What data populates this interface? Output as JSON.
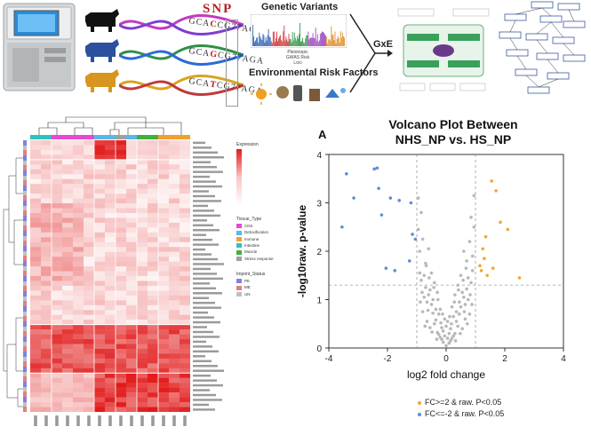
{
  "top": {
    "snp_label": "SNP",
    "sequences": [
      {
        "before": "GCA",
        "mut": "C",
        "after": "CG77AGA"
      },
      {
        "before": "GCA",
        "mut": "G",
        "after": "CG77AGA"
      },
      {
        "before": "GCA",
        "mut": "T",
        "after": "CG77AGA"
      }
    ],
    "gwas_title": "Genetic Variants",
    "gwas_sub": "Pleiotropic\nGWAS Risk\nLoci",
    "env_title": "Environmental Risk Factors",
    "gxe_label": "GxE"
  },
  "heatmap": {
    "legend_expression_title": "Expression",
    "legend_tissue_title": "Tissue_Type",
    "tissue_types": [
      {
        "label": "CNS",
        "color": "#e64ad3"
      },
      {
        "label": "Detoxification",
        "color": "#58b8e8"
      },
      {
        "label": "Immune",
        "color": "#f0a030"
      },
      {
        "label": "Intestine",
        "color": "#30c0c0"
      },
      {
        "label": "Muscle",
        "color": "#40b040"
      },
      {
        "label": "Stress response",
        "color": "#a0a0a0"
      }
    ],
    "legend_imprint_title": "Imprint_Status",
    "imprint_status": [
      {
        "label": "PE",
        "color": "#8080e0"
      },
      {
        "label": "ME",
        "color": "#e08080"
      },
      {
        "label": "UN",
        "color": "#c0c0c0"
      }
    ]
  },
  "volcano": {
    "panel_letter": "A",
    "title_line1": "Volcano Plot Between",
    "title_line2": "NHS_NP vs. HS_NP",
    "legend": [
      {
        "label": "FC>=2 & raw. P<0.05",
        "color": "#f0a830"
      },
      {
        "label": "FC<=-2 & raw. P<0.05",
        "color": "#5b8fd6"
      }
    ]
  },
  "chart_data": {
    "type": "scatter",
    "title": "Volcano Plot Between NHS_NP vs. HS_NP",
    "xlabel": "log2 fold change",
    "ylabel": "-log10raw. p-value",
    "xlim": [
      -4,
      4
    ],
    "ylim": [
      0,
      4
    ],
    "xticks": [
      -4,
      -2,
      0,
      2,
      4
    ],
    "yticks": [
      0,
      1,
      2,
      3,
      4
    ],
    "threshold_lines": {
      "x": [
        -1,
        1
      ],
      "y": 1.3
    },
    "series": [
      {
        "name": "FC>=2 & raw. P<0.05",
        "color": "#f0a830",
        "points": [
          [
            1.55,
            3.45
          ],
          [
            1.7,
            3.25
          ],
          [
            1.85,
            2.6
          ],
          [
            2.1,
            2.45
          ],
          [
            1.35,
            2.3
          ],
          [
            1.25,
            2.05
          ],
          [
            1.3,
            1.85
          ],
          [
            1.2,
            1.6
          ],
          [
            1.4,
            1.5
          ],
          [
            2.5,
            1.45
          ],
          [
            1.15,
            1.7
          ],
          [
            1.6,
            1.65
          ]
        ]
      },
      {
        "name": "FC<=-2 & raw. P<0.05",
        "color": "#5b8fd6",
        "points": [
          [
            -3.4,
            3.6
          ],
          [
            -2.45,
            3.7
          ],
          [
            -2.35,
            3.72
          ],
          [
            -3.55,
            2.5
          ],
          [
            -2.3,
            3.3
          ],
          [
            -1.9,
            3.1
          ],
          [
            -1.6,
            3.05
          ],
          [
            -1.2,
            3.0
          ],
          [
            -2.2,
            2.75
          ],
          [
            -3.15,
            3.1
          ],
          [
            -1.15,
            2.35
          ],
          [
            -1.05,
            2.25
          ],
          [
            -1.25,
            1.8
          ],
          [
            -1.75,
            1.6
          ],
          [
            -2.05,
            1.65
          ]
        ]
      },
      {
        "name": "not significant",
        "color": "#b8b8b8",
        "points": [
          [
            0.0,
            0.05
          ],
          [
            0.1,
            0.1
          ],
          [
            -0.1,
            0.12
          ],
          [
            0.2,
            0.2
          ],
          [
            -0.2,
            0.22
          ],
          [
            0.3,
            0.3
          ],
          [
            -0.3,
            0.32
          ],
          [
            0.15,
            0.4
          ],
          [
            -0.15,
            0.42
          ],
          [
            0.4,
            0.45
          ],
          [
            -0.4,
            0.5
          ],
          [
            0.05,
            0.55
          ],
          [
            -0.05,
            0.6
          ],
          [
            0.25,
            0.65
          ],
          [
            -0.25,
            0.7
          ],
          [
            0.35,
            0.75
          ],
          [
            -0.35,
            0.8
          ],
          [
            0.5,
            0.85
          ],
          [
            -0.5,
            0.9
          ],
          [
            0.45,
            0.95
          ],
          [
            -0.45,
            1.0
          ],
          [
            0.6,
            1.05
          ],
          [
            -0.6,
            1.1
          ],
          [
            0.55,
            1.15
          ],
          [
            -0.55,
            1.2
          ],
          [
            0.7,
            1.22
          ],
          [
            -0.7,
            1.25
          ],
          [
            0.65,
            0.6
          ],
          [
            -0.65,
            0.55
          ],
          [
            0.8,
            0.7
          ],
          [
            -0.8,
            0.75
          ],
          [
            0.75,
            1.0
          ],
          [
            -0.75,
            1.05
          ],
          [
            0.85,
            1.35
          ],
          [
            -0.85,
            1.4
          ],
          [
            0.9,
            1.6
          ],
          [
            -0.9,
            1.55
          ],
          [
            0.7,
            1.8
          ],
          [
            -0.7,
            1.75
          ],
          [
            0.6,
            2.0
          ],
          [
            -0.6,
            2.05
          ],
          [
            0.8,
            2.2
          ],
          [
            -0.8,
            2.25
          ],
          [
            0.5,
            1.5
          ],
          [
            -0.5,
            1.55
          ],
          [
            0.95,
            2.5
          ],
          [
            -0.95,
            2.45
          ],
          [
            0.85,
            2.7
          ],
          [
            -0.85,
            2.8
          ],
          [
            0.4,
            1.3
          ],
          [
            -0.4,
            1.35
          ],
          [
            0.3,
            1.1
          ],
          [
            -0.3,
            1.15
          ],
          [
            0.2,
            0.85
          ],
          [
            -0.2,
            0.8
          ],
          [
            0.1,
            0.3
          ],
          [
            -0.1,
            0.35
          ],
          [
            0.0,
            0.45
          ],
          [
            0.15,
            0.15
          ],
          [
            -0.15,
            0.18
          ],
          [
            0.25,
            0.25
          ],
          [
            -0.25,
            0.28
          ],
          [
            0.35,
            0.55
          ],
          [
            -0.35,
            0.58
          ],
          [
            0.45,
            0.7
          ],
          [
            -0.45,
            0.72
          ],
          [
            0.55,
            0.4
          ],
          [
            -0.55,
            0.42
          ],
          [
            0.65,
            0.9
          ],
          [
            -0.65,
            0.95
          ],
          [
            0.9,
            1.9
          ],
          [
            -0.9,
            2.0
          ],
          [
            0.75,
            1.45
          ],
          [
            -0.75,
            1.5
          ],
          [
            0.95,
            3.15
          ],
          [
            -0.95,
            3.1
          ],
          [
            0.05,
            0.2
          ],
          [
            -0.05,
            0.25
          ],
          [
            0.12,
            0.65
          ],
          [
            -0.12,
            0.7
          ],
          [
            0.28,
            0.95
          ],
          [
            -0.28,
            1.0
          ],
          [
            0.42,
            1.2
          ],
          [
            -0.42,
            1.25
          ],
          [
            0.58,
            1.4
          ],
          [
            -0.58,
            1.45
          ],
          [
            0.68,
            1.65
          ],
          [
            -0.68,
            1.7
          ],
          [
            0.82,
            1.1
          ],
          [
            -0.82,
            1.15
          ],
          [
            0.18,
            0.5
          ],
          [
            -0.18,
            0.52
          ],
          [
            0.32,
            0.15
          ],
          [
            -0.32,
            0.18
          ],
          [
            0.48,
            0.3
          ],
          [
            -0.48,
            0.33
          ],
          [
            0.62,
            0.75
          ],
          [
            -0.62,
            0.78
          ],
          [
            0.72,
            0.5
          ],
          [
            -0.72,
            0.45
          ],
          [
            0.88,
            0.9
          ],
          [
            -0.88,
            0.95
          ]
        ]
      }
    ]
  }
}
